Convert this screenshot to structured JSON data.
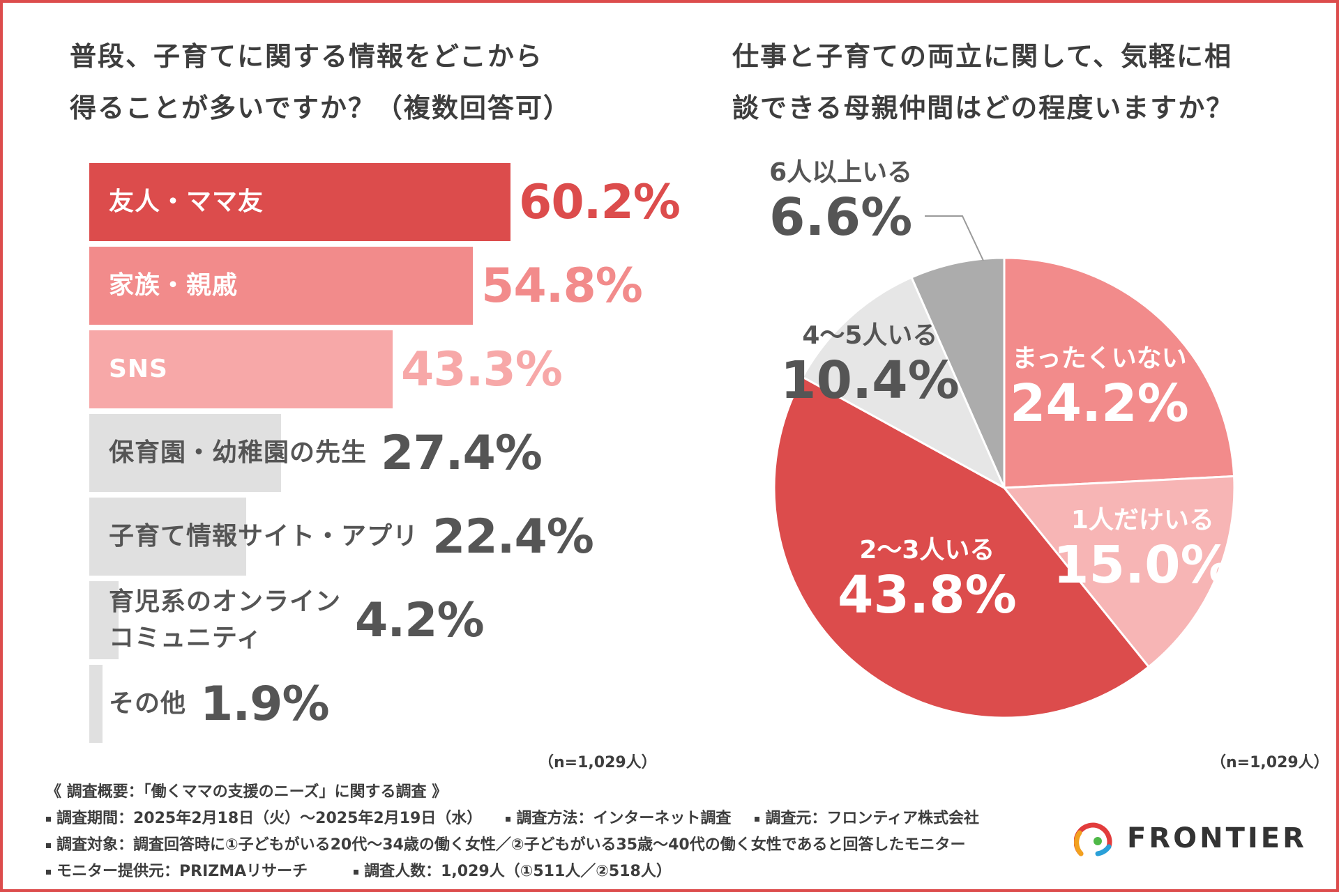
{
  "left_question": {
    "title_line1": "普段、子育てに関する情報をどこから",
    "title_line2": "得ることが多いですか？（複数回答可）",
    "n_note": "（n=1,029人）"
  },
  "right_question": {
    "title_line1": "仕事と子育ての両立に関して、気軽に相",
    "title_line2": "談できる母親仲間はどの程度いますか？",
    "n_note": "（n=1,029人）"
  },
  "chart_data": [
    {
      "type": "bar",
      "orientation": "horizontal",
      "title": "普段、子育てに関する情報をどこから得ることが多いですか？（複数回答可）",
      "categories": [
        "友人・ママ友",
        "家族・親戚",
        "SNS",
        "保育園・幼稚園の先生",
        "子育て情報サイト・アプリ",
        "育児系のオンラインコミュニティ",
        "その他"
      ],
      "label_lines": [
        [
          "友人・ママ友"
        ],
        [
          "家族・親戚"
        ],
        [
          "SNS"
        ],
        [
          "保育園・幼稚園の先生"
        ],
        [
          "子育て情報サイト・アプリ"
        ],
        [
          "育児系のオンライン",
          "コミュニティ"
        ],
        [
          "その他"
        ]
      ],
      "values": [
        60.2,
        54.8,
        43.3,
        27.4,
        22.4,
        4.2,
        1.9
      ],
      "value_labels": [
        "60.2%",
        "54.8%",
        "43.3%",
        "27.4%",
        "22.4%",
        "4.2%",
        "1.9%"
      ],
      "colors": [
        "#dc4c4c",
        "#f28b8b",
        "#f7a8a8",
        "#e0e0e0",
        "#e0e0e0",
        "#e0e0e0",
        "#e0e0e0"
      ],
      "value_colors": [
        "#dc4c4c",
        "#f28b8b",
        "#f7a8a8",
        "#555555",
        "#555555",
        "#555555",
        "#555555"
      ],
      "xlim": [
        0,
        100
      ],
      "unit": "%",
      "n": "n=1,029人"
    },
    {
      "type": "pie",
      "title": "仕事と子育ての両立に関して、気軽に相談できる母親仲間はどの程度いますか？",
      "categories": [
        "まったくいない",
        "1人だけいる",
        "2～3人いる",
        "4～5人いる",
        "6人以上いる"
      ],
      "values": [
        24.2,
        15.0,
        43.8,
        10.4,
        6.6
      ],
      "value_labels": [
        "24.2%",
        "15.0%",
        "43.8%",
        "10.4%",
        "6.6%"
      ],
      "colors": [
        "#f28b8b",
        "#f7b5b5",
        "#dc4c4c",
        "#e6e6e6",
        "#acacac"
      ],
      "start_angle": "12 o'clock, clockwise",
      "n": "n=1,029人"
    }
  ],
  "footer": {
    "heading": "《 調査概要：「働くママの支援のニーズ」に関する調査 》",
    "period": "調査期間：2025年2月18日（火）～2025年2月19日（水）",
    "method": "調査方法：インターネット調査",
    "source": "調査元：フロンティア株式会社",
    "target": "調査対象：調査回答時に①子どもがいる20代～34歳の働く女性／②子どもがいる35歳～40代の働く女性であると回答したモニター",
    "provider": "モニター提供元：PRIZMAリサーチ",
    "count": "調査人数：1,029人（①511人／②518人）"
  },
  "logo": {
    "text": "FRONTIER"
  }
}
